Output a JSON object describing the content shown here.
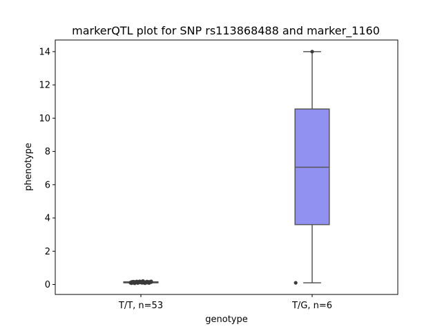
{
  "chart_data": {
    "type": "box",
    "title": "markerQTL plot for SNP rs113868488 and marker_1160",
    "xlabel": "genotype",
    "ylabel": "phenotype",
    "ylim": [
      -0.6,
      14.7
    ],
    "yticks": [
      0,
      2,
      4,
      6,
      8,
      10,
      12,
      14
    ],
    "ytick_labels": [
      "0",
      "2",
      "4",
      "6",
      "8",
      "10",
      "12",
      "14"
    ],
    "categories": [
      "T/T, n=53",
      "T/G, n=6"
    ],
    "boxes": [
      {
        "category": "T/T, n=53",
        "q1": 0.1,
        "median": 0.13,
        "q3": 0.16,
        "whisker_low": 0.05,
        "whisker_high": 0.22,
        "points": [
          0.12,
          0.15,
          0.1,
          0.18,
          0.08,
          0.14,
          0.2,
          0.11,
          0.16,
          0.09,
          0.13,
          0.17,
          0.1,
          0.15,
          0.12,
          0.19,
          0.07,
          0.14,
          0.11,
          0.16,
          0.13,
          0.1,
          0.18,
          0.12,
          0.15,
          0.09,
          0.14,
          0.21,
          0.11,
          0.13,
          0.16,
          0.1,
          0.12,
          0.17,
          0.14,
          0.08,
          0.15,
          0.12,
          0.19,
          0.11,
          0.13,
          0.16,
          0.1,
          0.14,
          0.12,
          0.18,
          0.15,
          0.11,
          0.13,
          0.09,
          0.16,
          0.12,
          0.14
        ]
      },
      {
        "category": "T/G, n=6",
        "q1": 3.6,
        "median": 7.05,
        "q3": 10.55,
        "whisker_low": 0.1,
        "whisker_high": 14.0,
        "points": [
          0.1,
          14.0
        ]
      }
    ],
    "colors": {
      "box_fill_1": "#3a3a3a",
      "box_fill_2": "#9191f2",
      "box_line": "#555555",
      "point": "#3a3a3a"
    },
    "grid": false
  }
}
